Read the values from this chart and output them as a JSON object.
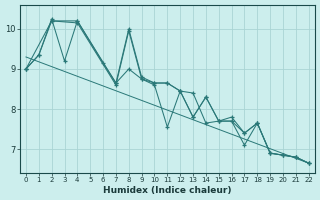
{
  "bg_color": "#cceeed",
  "grid_color": "#aad4d4",
  "line_color": "#2a7878",
  "xlabel": "Humidex (Indice chaleur)",
  "xlim": [
    -0.5,
    22.5
  ],
  "ylim": [
    6.4,
    10.6
  ],
  "yticks": [
    7,
    8,
    9,
    10
  ],
  "xticks": [
    0,
    1,
    2,
    3,
    4,
    5,
    6,
    7,
    8,
    9,
    10,
    11,
    12,
    13,
    14,
    15,
    16,
    17,
    18,
    19,
    20,
    21,
    22
  ],
  "series1_x": [
    0,
    1,
    2,
    4,
    7,
    8,
    9,
    10,
    11,
    12,
    13,
    14,
    15,
    16,
    17,
    18,
    19,
    20,
    21,
    22
  ],
  "series1_y": [
    9.0,
    9.35,
    10.2,
    10.2,
    8.65,
    10.0,
    8.8,
    8.65,
    8.65,
    8.45,
    7.8,
    8.3,
    7.7,
    7.8,
    7.4,
    7.65,
    6.9,
    6.85,
    6.8,
    6.65
  ],
  "series2_x": [
    0,
    2,
    4,
    7,
    8,
    9,
    10,
    11,
    12,
    13,
    14,
    15,
    16,
    17,
    18,
    19,
    20,
    21,
    22
  ],
  "series2_y": [
    9.0,
    10.2,
    10.15,
    8.6,
    9.95,
    8.75,
    8.6,
    7.55,
    8.45,
    8.4,
    7.65,
    7.7,
    7.7,
    7.1,
    7.65,
    6.9,
    6.85,
    6.8,
    6.65
  ],
  "series3_x": [
    0,
    1,
    2,
    3,
    4,
    6,
    7,
    8,
    9,
    10,
    11,
    12,
    13,
    14,
    15,
    16,
    17,
    18,
    19,
    20,
    21,
    22
  ],
  "series3_y": [
    9.0,
    9.35,
    10.25,
    9.2,
    10.2,
    9.15,
    8.65,
    9.0,
    8.75,
    8.65,
    8.65,
    8.45,
    7.8,
    8.3,
    7.7,
    7.7,
    7.4,
    7.65,
    6.9,
    6.85,
    6.8,
    6.65
  ],
  "trend_x": [
    0,
    22
  ],
  "trend_y": [
    9.3,
    6.65
  ]
}
